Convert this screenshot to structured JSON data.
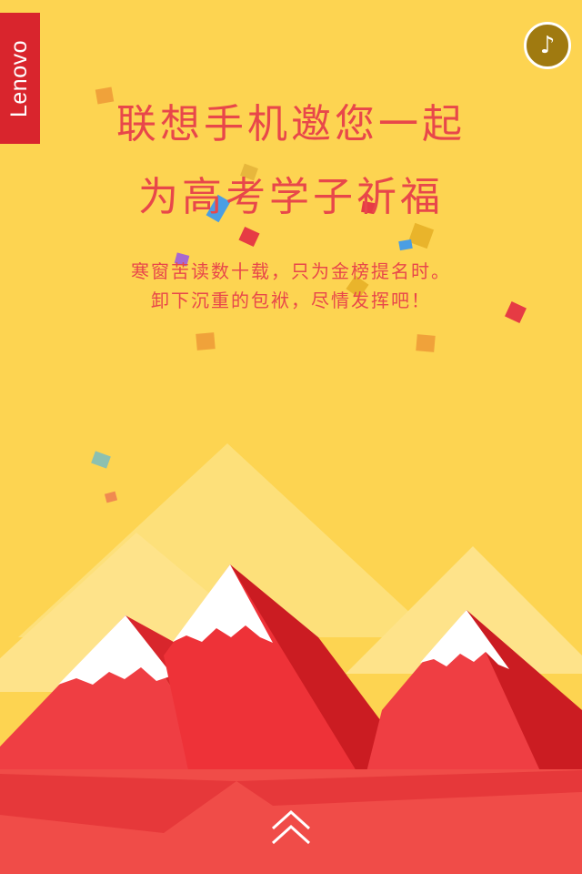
{
  "brand": {
    "logo_text": "Lenovo",
    "color": "#d9252d"
  },
  "music_button": {
    "icon": "music-note-icon",
    "glyph": "♪",
    "color": "#a07a10"
  },
  "headline": {
    "line1": "联想手机邀您一起",
    "line2": "为高考学子祈福",
    "color": "#e8474a"
  },
  "subtext": {
    "line1": "寒窗苦读数十载，只为金榜提名时。",
    "line2": "卸下沉重的包袱，尽情发挥吧！",
    "color": "#e8474a"
  },
  "scroll_hint": {
    "icon": "double-chevron-up-icon"
  },
  "colors": {
    "background": "#fdd451",
    "mountain_red": "#ef3e43",
    "mountain_dark": "#cc1e24",
    "snow": "#ffffff",
    "ground": "#f04c48"
  }
}
